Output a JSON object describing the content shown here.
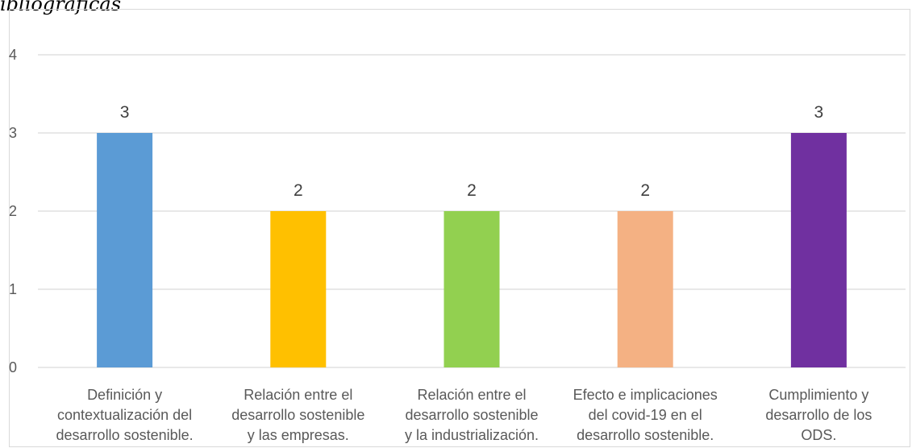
{
  "heading_fragment": "ibliograficas",
  "chart_data": {
    "type": "bar",
    "categories": [
      [
        "Definición y",
        "contextualización del",
        "desarrollo sostenible."
      ],
      [
        "Relación entre el",
        "desarrollo sostenible",
        "y las empresas."
      ],
      [
        "Relación entre el",
        "desarrollo sostenible",
        "y la industrialización."
      ],
      [
        "Efecto e implicaciones",
        "del covid-19 en el",
        "desarrollo sostenible."
      ],
      [
        "Cumplimiento y",
        "desarrollo  de los",
        "ODS."
      ]
    ],
    "values": [
      3,
      2,
      2,
      2,
      3
    ],
    "colors": [
      "#5B9BD5",
      "#FFC000",
      "#92D050",
      "#F4B183",
      "#7030A0"
    ],
    "yticks": [
      0,
      1,
      2,
      3,
      4
    ],
    "ylim": [
      0,
      4
    ],
    "grid": true,
    "data_labels": true,
    "legend": "none"
  }
}
